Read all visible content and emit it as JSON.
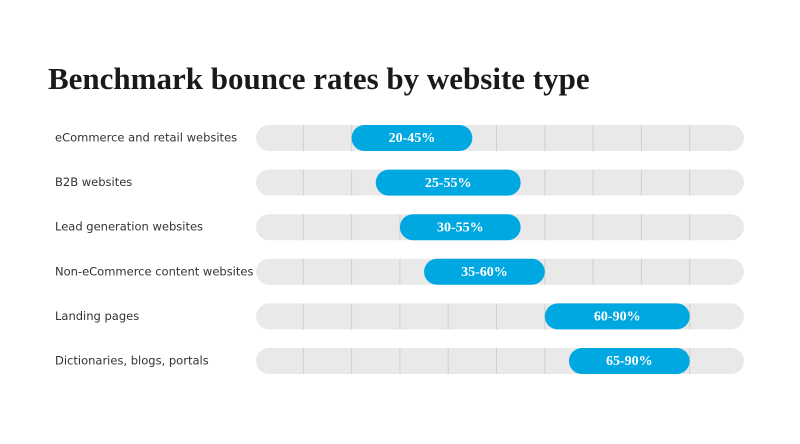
{
  "chart_data": {
    "type": "range-bar",
    "title": "Benchmark bounce rates by website type",
    "categories": [
      "eCommerce and retail websites",
      "B2B websites",
      "Lead generation websites",
      "Non-eCommerce content websites",
      "Landing pages",
      "Dictionaries, blogs, portals"
    ],
    "low": [
      20,
      25,
      30,
      35,
      60,
      65
    ],
    "high": [
      45,
      55,
      55,
      60,
      90,
      90
    ],
    "value_labels": [
      "20-45%",
      "25-55%",
      "30-55%",
      "35-60%",
      "60-90%",
      "65-90%"
    ],
    "color": "#00a8e1",
    "xlim": [
      0,
      100
    ],
    "xticks": [
      10,
      20,
      30,
      40,
      50,
      60,
      70,
      80,
      90
    ],
    "grid": true
  }
}
